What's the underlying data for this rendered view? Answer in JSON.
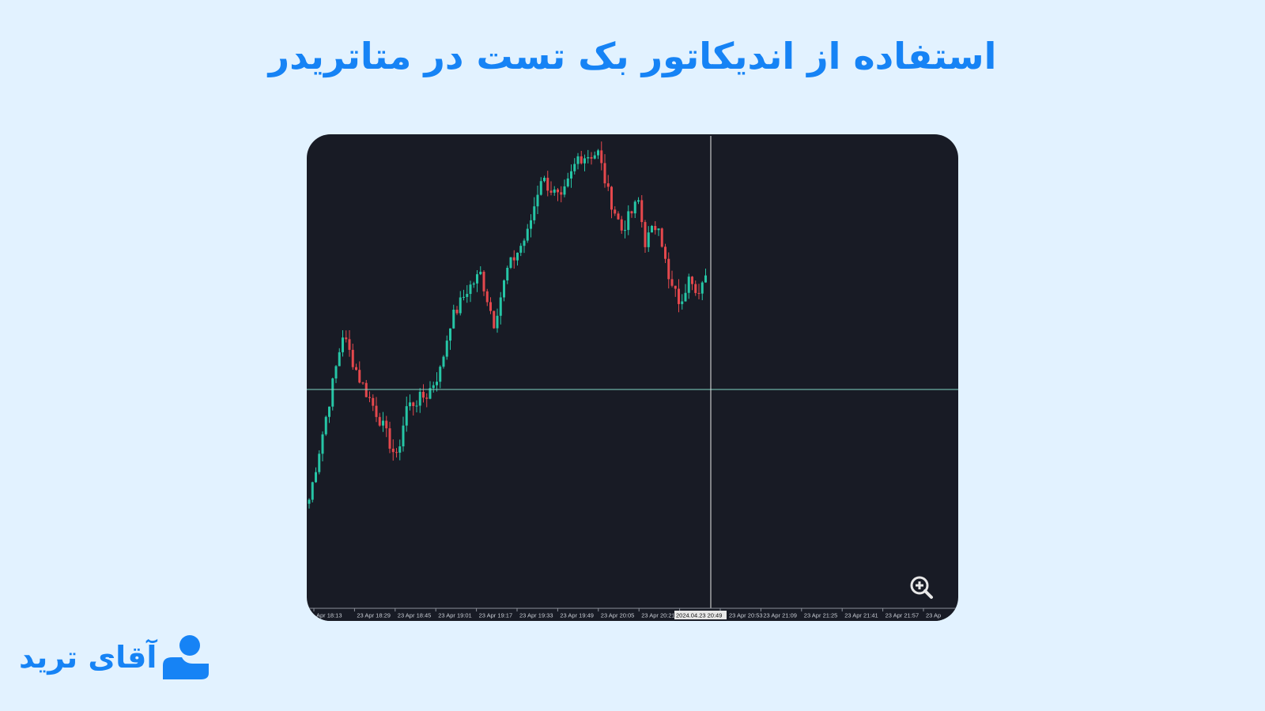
{
  "title": "استفاده از اندیکاتور بک تست در متاتریدر",
  "brand": {
    "name": "آقای ترید",
    "color": "#1683f5",
    "icon": "user-logo-icon"
  },
  "colors": {
    "background": "#e2f2ff",
    "chart_bg": "#181b25",
    "bull": "#26c6a6",
    "bear": "#e5484d",
    "crosshair": "#7fd6c4"
  },
  "chart_data": {
    "type": "candlestick",
    "y_axis": "not shown",
    "x_tick_labels": [
      "Apr 18:13",
      "23 Apr 18:29",
      "23 Apr 18:45",
      "23 Apr 19:01",
      "23 Apr 19:17",
      "23 Apr 19:33",
      "23 Apr 19:49",
      "23 Apr 20:05",
      "23 Apr 20:21",
      "",
      "23 Apr 20:53",
      "23 Apr 21:09",
      "23 Apr 21:25",
      "23 Apr 21:41",
      "23 Apr 21:57",
      "23 Ap"
    ],
    "crosshair_time_label": "2024.04.23 20:49",
    "price_path_keypoints_relative": [
      [
        0,
        80
      ],
      [
        10,
        285
      ],
      [
        15,
        230
      ],
      [
        21,
        180
      ],
      [
        26,
        130
      ],
      [
        29,
        195
      ],
      [
        35,
        210
      ],
      [
        39,
        240
      ],
      [
        42,
        300
      ],
      [
        47,
        340
      ],
      [
        51,
        360
      ],
      [
        55,
        300
      ],
      [
        59,
        365
      ],
      [
        65,
        410
      ],
      [
        69,
        480
      ],
      [
        75,
        450
      ],
      [
        80,
        505
      ],
      [
        86,
        510
      ],
      [
        89,
        460
      ],
      [
        93,
        415
      ],
      [
        98,
        450
      ],
      [
        100,
        400
      ],
      [
        104,
        425
      ],
      [
        107,
        350
      ],
      [
        111,
        320
      ],
      [
        113,
        365
      ],
      [
        116,
        335
      ],
      [
        118,
        352
      ]
    ],
    "zoom_icon": "zoom-in-icon",
    "grid": false
  }
}
